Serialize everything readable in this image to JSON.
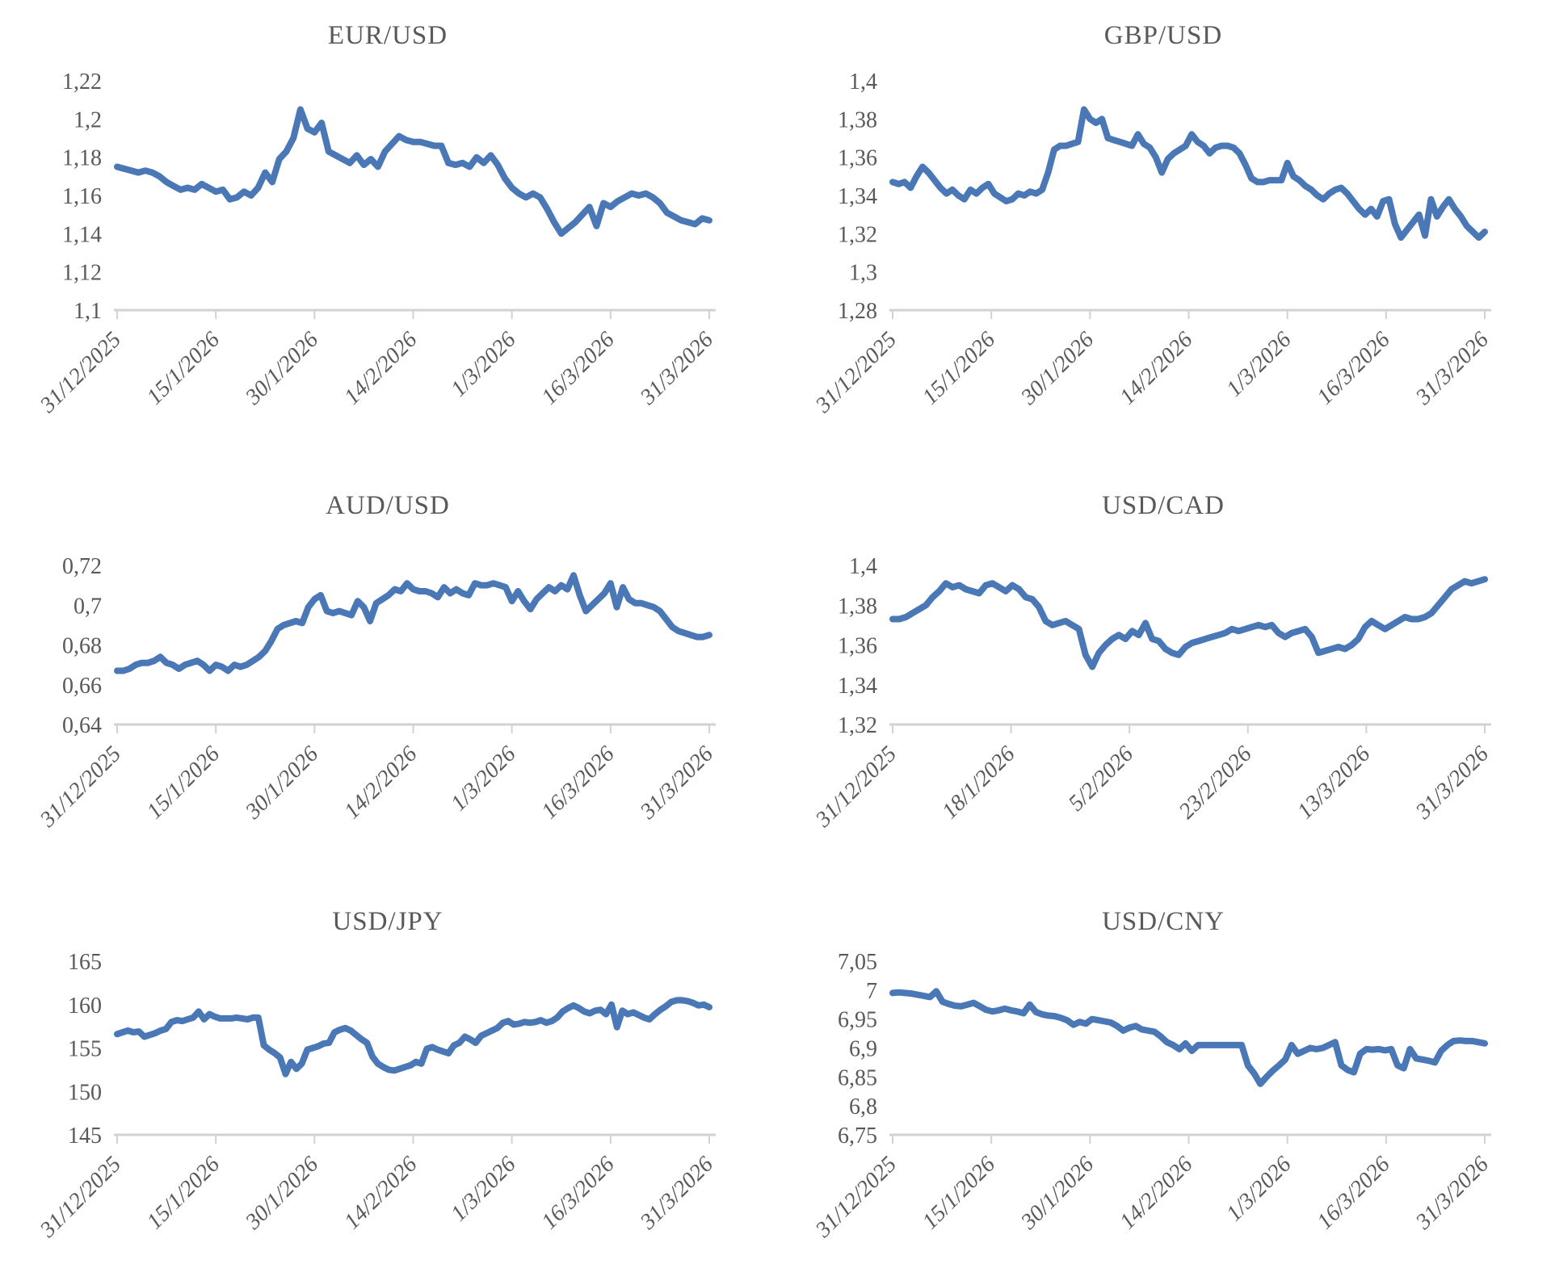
{
  "styles": {
    "line_color": "#4a77b5",
    "axis_color": "#d2d2d2",
    "text_color": "#595959",
    "background": "#ffffff"
  },
  "chart_data": [
    {
      "type": "line",
      "title": "EUR/USD",
      "ylim": [
        1.1,
        1.22
      ],
      "y_tick_labels": [
        "1,22",
        "1,2",
        "1,18",
        "1,16",
        "1,14",
        "1,12",
        "1,1"
      ],
      "x_labels": [
        "31/12/2025",
        "15/1/2026",
        "30/1/2026",
        "14/2/2026",
        "1/3/2026",
        "16/3/2026",
        "31/3/2026"
      ],
      "grid": false,
      "legend": "none",
      "values": [
        1.175,
        1.174,
        1.173,
        1.172,
        1.173,
        1.172,
        1.17,
        1.167,
        1.165,
        1.163,
        1.164,
        1.163,
        1.166,
        1.164,
        1.162,
        1.163,
        1.158,
        1.159,
        1.162,
        1.16,
        1.164,
        1.172,
        1.167,
        1.179,
        1.183,
        1.19,
        1.205,
        1.195,
        1.193,
        1.198,
        1.183,
        1.181,
        1.179,
        1.177,
        1.181,
        1.176,
        1.179,
        1.175,
        1.183,
        1.187,
        1.191,
        1.189,
        1.188,
        1.188,
        1.187,
        1.186,
        1.186,
        1.177,
        1.176,
        1.177,
        1.175,
        1.18,
        1.177,
        1.181,
        1.176,
        1.169,
        1.164,
        1.161,
        1.159,
        1.161,
        1.159,
        1.153,
        1.146,
        1.14,
        1.143,
        1.146,
        1.15,
        1.154,
        1.144,
        1.156,
        1.154,
        1.157,
        1.159,
        1.161,
        1.16,
        1.161,
        1.159,
        1.156,
        1.151,
        1.149,
        1.147,
        1.146,
        1.145,
        1.148,
        1.147
      ]
    },
    {
      "type": "line",
      "title": "GBP/USD",
      "ylim": [
        1.28,
        1.4
      ],
      "y_tick_labels": [
        "1,4",
        "1,38",
        "1,36",
        "1,34",
        "1,32",
        "1,3",
        "1,28"
      ],
      "x_labels": [
        "31/12/2025",
        "15/1/2026",
        "30/1/2026",
        "14/2/2026",
        "1/3/2026",
        "16/3/2026",
        "31/3/2026"
      ],
      "grid": false,
      "legend": "none",
      "values": [
        1.347,
        1.346,
        1.347,
        1.344,
        1.35,
        1.355,
        1.352,
        1.348,
        1.344,
        1.341,
        1.343,
        1.34,
        1.338,
        1.343,
        1.341,
        1.344,
        1.346,
        1.341,
        1.339,
        1.337,
        1.338,
        1.341,
        1.34,
        1.342,
        1.341,
        1.343,
        1.352,
        1.364,
        1.366,
        1.366,
        1.367,
        1.368,
        1.385,
        1.38,
        1.378,
        1.38,
        1.37,
        1.369,
        1.368,
        1.367,
        1.366,
        1.372,
        1.367,
        1.365,
        1.36,
        1.352,
        1.359,
        1.362,
        1.364,
        1.366,
        1.372,
        1.368,
        1.366,
        1.362,
        1.365,
        1.366,
        1.366,
        1.365,
        1.362,
        1.356,
        1.349,
        1.347,
        1.347,
        1.348,
        1.348,
        1.348,
        1.357,
        1.35,
        1.348,
        1.345,
        1.343,
        1.34,
        1.338,
        1.341,
        1.343,
        1.344,
        1.341,
        1.337,
        1.333,
        1.33,
        1.333,
        1.329,
        1.337,
        1.338,
        1.325,
        1.318,
        1.322,
        1.326,
        1.33,
        1.319,
        1.338,
        1.329,
        1.334,
        1.338,
        1.333,
        1.329,
        1.324,
        1.321,
        1.318,
        1.321
      ]
    },
    {
      "type": "line",
      "title": "AUD/USD",
      "ylim": [
        0.64,
        0.72
      ],
      "y_tick_labels": [
        "0,72",
        "0,7",
        "0,68",
        "0,66",
        "0,64"
      ],
      "x_labels": [
        "31/12/2025",
        "15/1/2026",
        "30/1/2026",
        "14/2/2026",
        "1/3/2026",
        "16/3/2026",
        "31/3/2026"
      ],
      "grid": false,
      "legend": "none",
      "values": [
        0.667,
        0.667,
        0.668,
        0.67,
        0.671,
        0.671,
        0.672,
        0.674,
        0.671,
        0.67,
        0.668,
        0.67,
        0.671,
        0.672,
        0.67,
        0.667,
        0.67,
        0.669,
        0.667,
        0.67,
        0.669,
        0.67,
        0.672,
        0.674,
        0.677,
        0.682,
        0.688,
        0.69,
        0.691,
        0.692,
        0.691,
        0.699,
        0.703,
        0.705,
        0.697,
        0.696,
        0.697,
        0.696,
        0.695,
        0.702,
        0.699,
        0.692,
        0.701,
        0.703,
        0.705,
        0.708,
        0.707,
        0.711,
        0.708,
        0.707,
        0.707,
        0.706,
        0.704,
        0.709,
        0.706,
        0.708,
        0.706,
        0.705,
        0.711,
        0.71,
        0.71,
        0.711,
        0.71,
        0.709,
        0.702,
        0.707,
        0.702,
        0.698,
        0.703,
        0.706,
        0.709,
        0.707,
        0.71,
        0.708,
        0.715,
        0.705,
        0.697,
        0.7,
        0.703,
        0.706,
        0.711,
        0.699,
        0.709,
        0.703,
        0.701,
        0.701,
        0.7,
        0.699,
        0.697,
        0.693,
        0.689,
        0.687,
        0.686,
        0.685,
        0.684,
        0.684,
        0.685
      ]
    },
    {
      "type": "line",
      "title": "USD/CAD",
      "ylim": [
        1.32,
        1.4
      ],
      "y_tick_labels": [
        "1,4",
        "1,38",
        "1,36",
        "1,34",
        "1,32"
      ],
      "x_labels": [
        "31/12/2025",
        "18/1/2026",
        "5/2/2026",
        "23/2/2026",
        "13/3/2026",
        "31/3/2026"
      ],
      "grid": false,
      "legend": "none",
      "values": [
        1.373,
        1.373,
        1.374,
        1.376,
        1.378,
        1.38,
        1.384,
        1.387,
        1.391,
        1.389,
        1.39,
        1.388,
        1.387,
        1.386,
        1.39,
        1.391,
        1.389,
        1.387,
        1.39,
        1.388,
        1.384,
        1.383,
        1.379,
        1.372,
        1.37,
        1.371,
        1.372,
        1.37,
        1.368,
        1.355,
        1.349,
        1.356,
        1.36,
        1.363,
        1.365,
        1.363,
        1.367,
        1.365,
        1.371,
        1.363,
        1.362,
        1.358,
        1.356,
        1.355,
        1.359,
        1.361,
        1.362,
        1.363,
        1.364,
        1.365,
        1.366,
        1.368,
        1.367,
        1.368,
        1.369,
        1.37,
        1.369,
        1.37,
        1.366,
        1.364,
        1.366,
        1.367,
        1.368,
        1.364,
        1.356,
        1.357,
        1.358,
        1.359,
        1.358,
        1.36,
        1.363,
        1.369,
        1.372,
        1.37,
        1.368,
        1.37,
        1.372,
        1.374,
        1.373,
        1.373,
        1.374,
        1.376,
        1.38,
        1.384,
        1.388,
        1.39,
        1.392,
        1.391,
        1.392,
        1.393
      ]
    },
    {
      "type": "line",
      "title": "USD/JPY",
      "ylim": [
        145,
        165
      ],
      "y_tick_labels": [
        "165",
        "160",
        "155",
        "150",
        "145"
      ],
      "x_labels": [
        "31/12/2025",
        "15/1/2026",
        "30/1/2026",
        "14/2/2026",
        "1/3/2026",
        "16/3/2026",
        "31/3/2026"
      ],
      "grid": false,
      "legend": "none",
      "values": [
        156.6,
        156.8,
        157.0,
        156.8,
        156.9,
        156.3,
        156.5,
        156.7,
        157.0,
        157.2,
        158.0,
        158.2,
        158.1,
        158.3,
        158.5,
        159.2,
        158.3,
        158.9,
        158.6,
        158.4,
        158.4,
        158.4,
        158.5,
        158.4,
        158.3,
        158.5,
        158.5,
        155.3,
        154.8,
        154.4,
        153.9,
        152.0,
        153.4,
        152.6,
        153.2,
        154.8,
        155.0,
        155.2,
        155.5,
        155.6,
        156.8,
        157.1,
        157.3,
        157.0,
        156.5,
        156.0,
        155.6,
        154.0,
        153.2,
        152.8,
        152.5,
        152.4,
        152.6,
        152.8,
        153.0,
        153.4,
        153.2,
        154.9,
        155.1,
        154.8,
        154.6,
        154.4,
        155.3,
        155.6,
        156.3,
        156.0,
        155.6,
        156.4,
        156.7,
        157.0,
        157.3,
        157.9,
        158.1,
        157.7,
        157.8,
        158.0,
        157.9,
        158.0,
        158.2,
        157.9,
        158.1,
        158.5,
        159.2,
        159.6,
        159.9,
        159.6,
        159.2,
        159.0,
        159.3,
        159.4,
        158.9,
        160.0,
        157.4,
        159.3,
        158.9,
        159.1,
        158.8,
        158.5,
        158.3,
        158.9,
        159.4,
        159.8,
        160.3,
        160.5,
        160.5,
        160.4,
        160.2,
        159.9,
        160.0,
        159.7
      ]
    },
    {
      "type": "line",
      "title": "USD/CNY",
      "ylim": [
        6.75,
        7.05
      ],
      "y_tick_labels": [
        "7,05",
        "7",
        "6,95",
        "6,9",
        "6,85",
        "6,8",
        "6,75"
      ],
      "x_labels": [
        "31/12/2025",
        "15/1/2026",
        "30/1/2026",
        "14/2/2026",
        "1/3/2026",
        "16/3/2026",
        "31/3/2026"
      ],
      "grid": false,
      "legend": "none",
      "values": [
        6.995,
        6.996,
        6.995,
        6.994,
        6.992,
        6.99,
        6.988,
        6.998,
        6.98,
        6.976,
        6.973,
        6.972,
        6.975,
        6.978,
        6.972,
        6.966,
        6.963,
        6.965,
        6.968,
        6.965,
        6.963,
        6.96,
        6.975,
        6.962,
        6.958,
        6.956,
        6.955,
        6.952,
        6.948,
        6.94,
        6.945,
        6.942,
        6.95,
        6.948,
        6.946,
        6.944,
        6.938,
        6.93,
        6.935,
        6.938,
        6.932,
        6.93,
        6.928,
        6.92,
        6.91,
        6.905,
        6.898,
        6.908,
        6.895,
        6.905,
        6.905,
        6.905,
        6.905,
        6.905,
        6.905,
        6.905,
        6.905,
        6.87,
        6.856,
        6.838,
        6.85,
        6.861,
        6.87,
        6.88,
        6.905,
        6.89,
        6.895,
        6.9,
        6.898,
        6.9,
        6.905,
        6.91,
        6.87,
        6.862,
        6.858,
        6.89,
        6.898,
        6.897,
        6.898,
        6.896,
        6.898,
        6.87,
        6.865,
        6.898,
        6.882,
        6.88,
        6.878,
        6.875,
        6.895,
        6.905,
        6.912,
        6.913,
        6.912,
        6.912,
        6.91,
        6.908
      ]
    }
  ]
}
